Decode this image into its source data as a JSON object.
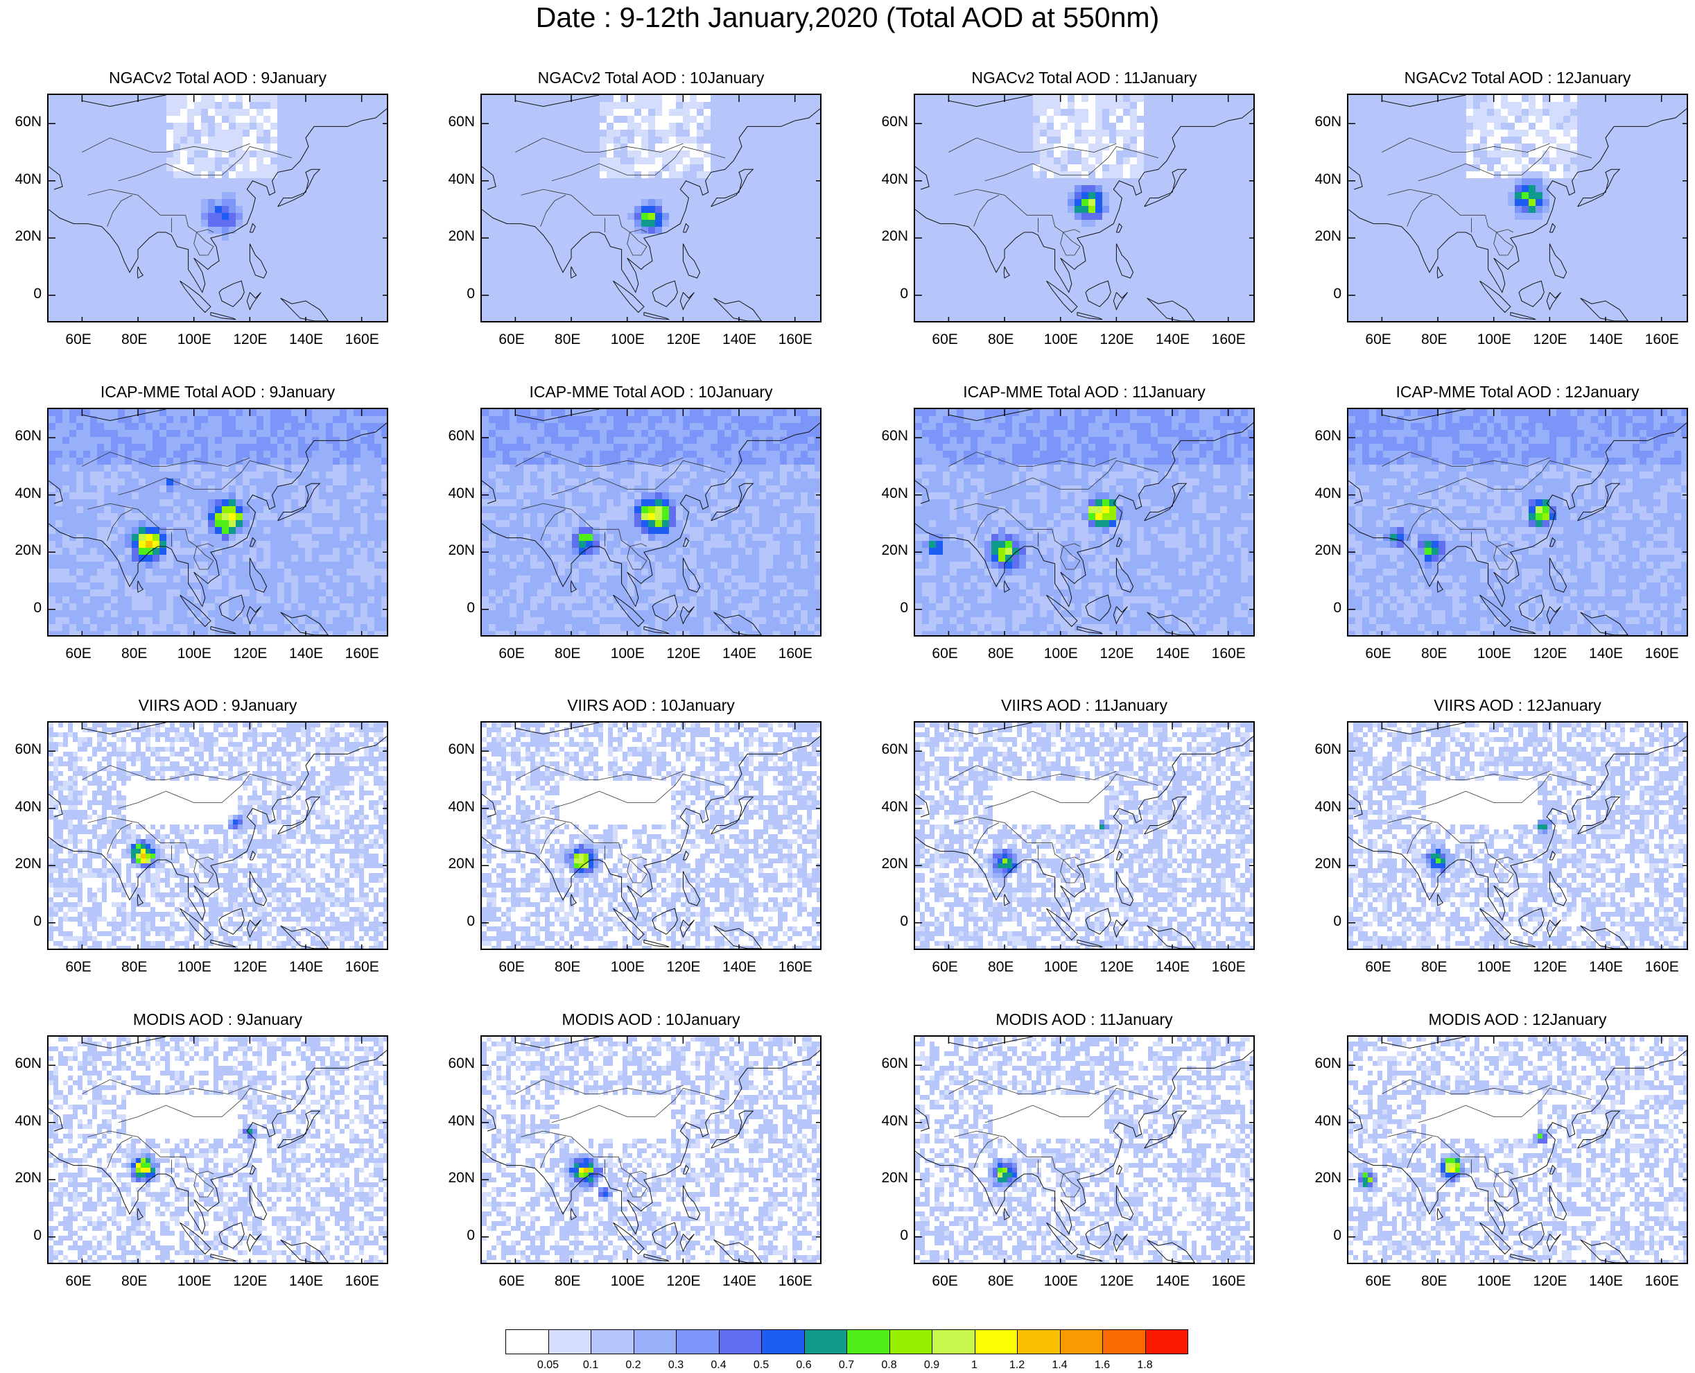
{
  "title": "Date : 9-12th January,2020 (Total AOD at 550nm)",
  "chart_data": {
    "type": "heatmap",
    "description_level": "gridded map panels",
    "x_ticks": [
      "60E",
      "80E",
      "100E",
      "120E",
      "140E",
      "160E"
    ],
    "y_ticks": [
      "60N",
      "40N",
      "20N",
      "0"
    ],
    "lon_range": [
      48,
      170
    ],
    "lat_range": [
      -10,
      70
    ],
    "panels": [
      {
        "title": "NGACv2 Total AOD : 9January",
        "row": 0,
        "col": 0
      },
      {
        "title": "NGACv2 Total AOD : 10January",
        "row": 0,
        "col": 1
      },
      {
        "title": "NGACv2 Total AOD : 11January",
        "row": 0,
        "col": 2
      },
      {
        "title": "NGACv2 Total AOD : 12January",
        "row": 0,
        "col": 3
      },
      {
        "title": "ICAP-MME Total AOD : 9January",
        "row": 1,
        "col": 0
      },
      {
        "title": "ICAP-MME Total AOD : 10January",
        "row": 1,
        "col": 1
      },
      {
        "title": "ICAP-MME Total AOD : 11January",
        "row": 1,
        "col": 2
      },
      {
        "title": "ICAP-MME Total AOD : 12January",
        "row": 1,
        "col": 3
      },
      {
        "title": "VIIRS AOD : 9January",
        "row": 2,
        "col": 0
      },
      {
        "title": "VIIRS AOD : 10January",
        "row": 2,
        "col": 1
      },
      {
        "title": "VIIRS AOD : 11January",
        "row": 2,
        "col": 2
      },
      {
        "title": "VIIRS AOD : 12January",
        "row": 2,
        "col": 3
      },
      {
        "title": "MODIS AOD : 9January",
        "row": 3,
        "col": 0
      },
      {
        "title": "MODIS AOD : 10January",
        "row": 3,
        "col": 1
      },
      {
        "title": "MODIS AOD : 11January",
        "row": 3,
        "col": 2
      },
      {
        "title": "MODIS AOD : 12January",
        "row": 3,
        "col": 3
      }
    ],
    "colorbar": {
      "labels": [
        "0.05",
        "0.1",
        "0.2",
        "0.3",
        "0.4",
        "0.5",
        "0.6",
        "0.7",
        "0.8",
        "0.9",
        "1",
        "1.2",
        "1.4",
        "1.6",
        "1.8"
      ],
      "colors": [
        "#ffffff",
        "#d4defc",
        "#b6c6fb",
        "#98affa",
        "#7b96f8",
        "#5f6ff0",
        "#1e5df4",
        "#0f9a8c",
        "#4fef1a",
        "#96f000",
        "#c7f74a",
        "#fbfd00",
        "#fbc000",
        "#fb9a00",
        "#fb6a00",
        "#fb1a00"
      ]
    }
  }
}
